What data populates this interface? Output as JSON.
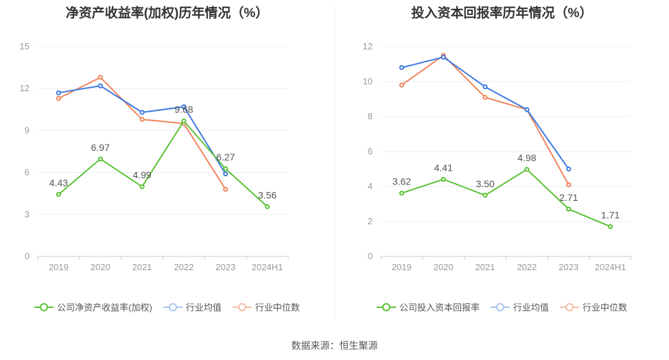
{
  "source_label": "数据来源：恒生聚源",
  "chart_data": [
    {
      "type": "line",
      "title": "净资产收益率(加权)历年情况（%）",
      "categories": [
        "2019",
        "2020",
        "2021",
        "2022",
        "2023",
        "2024H1"
      ],
      "ylim": [
        0,
        15
      ],
      "yticks": [
        0,
        3,
        6,
        9,
        12,
        15
      ],
      "grid": true,
      "legend_position": "bottom",
      "series": [
        {
          "name": "公司净资产收益率(加权)",
          "color": "#5bc236",
          "values": [
            4.43,
            6.97,
            4.99,
            9.68,
            6.27,
            3.56
          ],
          "labels": [
            "4.43",
            "6.97",
            "4.99",
            "9.68",
            "6.27",
            "3.56"
          ]
        },
        {
          "name": "行业均值",
          "color": "#3f7ae0",
          "values": [
            11.7,
            12.2,
            10.3,
            10.7,
            5.9,
            null
          ],
          "labels": []
        },
        {
          "name": "行业中位数",
          "color": "#f0845c",
          "values": [
            11.3,
            12.8,
            9.8,
            9.5,
            4.8,
            null
          ],
          "labels": []
        }
      ]
    },
    {
      "type": "line",
      "title": "投入资本回报率历年情况（%）",
      "categories": [
        "2019",
        "2020",
        "2021",
        "2022",
        "2023",
        "2024H1"
      ],
      "ylim": [
        0,
        12
      ],
      "yticks": [
        0,
        2,
        4,
        6,
        8,
        10,
        12
      ],
      "grid": true,
      "legend_position": "bottom",
      "series": [
        {
          "name": "公司投入资本回报率",
          "color": "#5bc236",
          "values": [
            3.62,
            4.41,
            3.5,
            4.98,
            2.71,
            1.71
          ],
          "labels": [
            "3.62",
            "4.41",
            "3.50",
            "4.98",
            "2.71",
            "1.71"
          ]
        },
        {
          "name": "行业均值",
          "color": "#3f7ae0",
          "values": [
            10.8,
            11.4,
            9.7,
            8.4,
            5.0,
            null
          ],
          "labels": []
        },
        {
          "name": "行业中位数",
          "color": "#f0845c",
          "values": [
            9.8,
            11.5,
            9.1,
            8.4,
            4.1,
            null
          ],
          "labels": []
        }
      ]
    }
  ]
}
